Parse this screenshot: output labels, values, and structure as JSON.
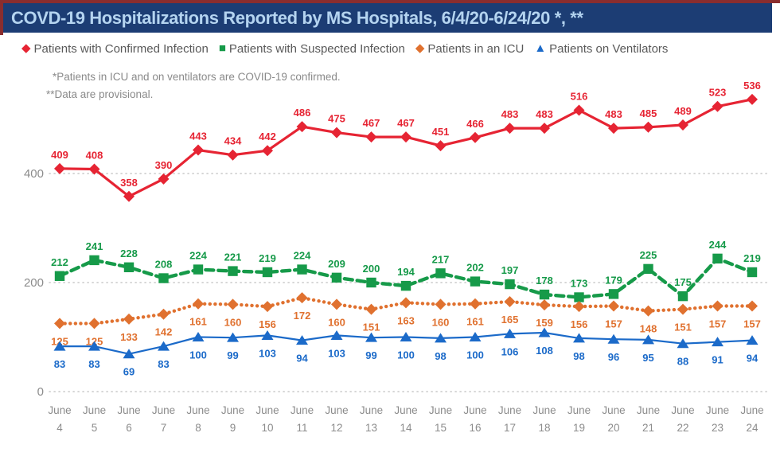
{
  "title_bar": {
    "title": "COVD-19 Hospitalizations Reported by MS Hospitals, 6/4/20-6/24/20 *, **"
  },
  "footnotes": [
    "*Patients in ICU and on ventilators are COVID-19 confirmed.",
    "**Data are provisional."
  ],
  "colors": {
    "title_bg": "#1c3d74",
    "title_text": "#b4d4f0",
    "accent_maroon": "#8a2d2e",
    "axis_text": "#8c8c8c",
    "grid": "#c8c8c8",
    "legend_text": "#595959",
    "footnote_text": "#8a8a8a",
    "confirmed_red": "#e62433",
    "suspected_green": "#169a49",
    "icu_orange": "#e0712f",
    "ventilator_blue": "#1b6ac9"
  },
  "chart_data": {
    "type": "line",
    "title": "COVD-19 Hospitalizations Reported by MS Hospitals, 6/4/20-6/24/20 *, **",
    "xlabel": "",
    "ylabel": "",
    "ylim": [
      0,
      560
    ],
    "yticks": [
      0,
      200,
      400
    ],
    "grid": "horizontal-dotted",
    "legend_position": "top",
    "categories": [
      "June 4",
      "June 5",
      "June 6",
      "June 7",
      "June 8",
      "June 9",
      "June 10",
      "June 11",
      "June 12",
      "June 13",
      "June 14",
      "June 15",
      "June 16",
      "June 17",
      "June 18",
      "June 19",
      "June 20",
      "June 21",
      "June 22",
      "June 23",
      "June 24"
    ],
    "series": [
      {
        "name": "Patients with Confirmed Infection",
        "color": "#e62433",
        "marker": "diamond",
        "line_style": "solid",
        "label_position": "above",
        "values": [
          409,
          408,
          358,
          390,
          443,
          434,
          442,
          486,
          475,
          467,
          467,
          451,
          466,
          483,
          483,
          516,
          483,
          485,
          489,
          523,
          536
        ]
      },
      {
        "name": "Patients with Suspected Infection",
        "color": "#169a49",
        "marker": "square",
        "line_style": "dashed",
        "label_position": "above",
        "values": [
          212,
          241,
          228,
          208,
          224,
          221,
          219,
          224,
          209,
          200,
          194,
          217,
          202,
          197,
          178,
          173,
          179,
          225,
          175,
          244,
          219
        ]
      },
      {
        "name": "Patients in an ICU",
        "color": "#e0712f",
        "marker": "diamond",
        "line_style": "dotted",
        "label_position": "below",
        "values": [
          125,
          125,
          133,
          142,
          161,
          160,
          156,
          172,
          160,
          151,
          163,
          160,
          161,
          165,
          159,
          156,
          157,
          148,
          151,
          157,
          157
        ]
      },
      {
        "name": "Patients on Ventilators",
        "color": "#1b6ac9",
        "marker": "triangle",
        "line_style": "solid",
        "label_position": "below",
        "values": [
          83,
          83,
          69,
          83,
          100,
          99,
          103,
          94,
          103,
          99,
          100,
          98,
          100,
          106,
          108,
          98,
          96,
          95,
          88,
          91,
          94
        ]
      }
    ]
  }
}
